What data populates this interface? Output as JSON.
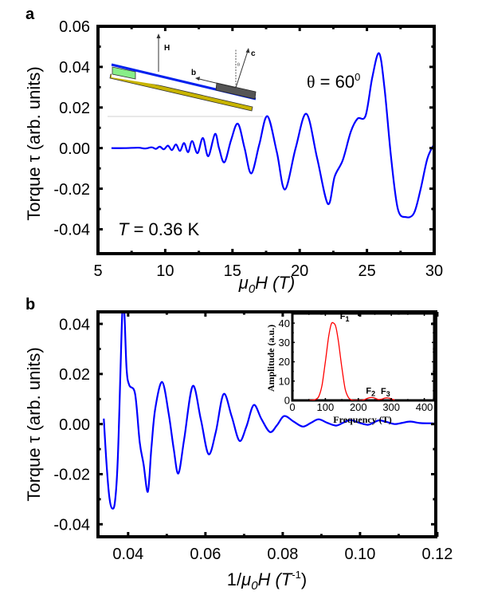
{
  "chart_data": [
    {
      "id": "a",
      "type": "line",
      "panel_label": "a",
      "xlabel_mu": "μ",
      "xlabel_sub": "0",
      "xlabel_rest": "H (T)",
      "ylabel": "Torque τ (arb. units)",
      "xlim": [
        5,
        30
      ],
      "ylim": [
        -0.052,
        0.06
      ],
      "xticks": [
        5,
        10,
        15,
        20,
        25,
        30
      ],
      "xtick_labels": [
        "5",
        "10",
        "15",
        "20",
        "25",
        "30"
      ],
      "yticks": [
        -0.04,
        -0.02,
        0.0,
        0.02,
        0.04,
        0.06
      ],
      "ytick_labels": [
        "-0.04",
        "-0.02",
        "0.00",
        "0.02",
        "0.04",
        "0.06"
      ],
      "annotations": {
        "angle_symbol": "θ",
        "angle_text": " = 60",
        "angle_sup": "0",
        "temp_symbol": "T",
        "temp_text": " = 0.36 K"
      },
      "diagram_labels": {
        "H": "H",
        "b": "b",
        "c": "c",
        "theta": "θ"
      },
      "series": [
        {
          "name": "torque",
          "color": "#0000ff",
          "x": [
            6.0,
            7.0,
            8.0,
            8.5,
            9.0,
            9.3,
            9.6,
            9.9,
            10.2,
            10.5,
            10.8,
            11.1,
            11.4,
            11.7,
            12.0,
            12.4,
            12.8,
            13.2,
            13.7,
            14.0,
            14.4,
            14.9,
            15.4,
            15.9,
            16.4,
            17.0,
            17.6,
            18.3,
            18.9,
            19.7,
            20.5,
            21.3,
            22.1,
            22.6,
            23.2,
            23.8,
            24.3,
            24.9,
            25.4,
            25.9,
            26.3,
            26.8,
            27.3,
            27.9,
            28.5,
            29.0,
            29.5,
            30.0
          ],
          "y": [
            0.0,
            0.0,
            0.0002,
            -0.0002,
            0.0004,
            -0.0004,
            0.0007,
            -0.0006,
            0.0012,
            -0.001,
            0.0018,
            -0.0014,
            0.0025,
            -0.002,
            0.0035,
            -0.0025,
            0.005,
            -0.004,
            0.007,
            0.0,
            -0.007,
            0.004,
            0.012,
            0.0,
            -0.0125,
            0.002,
            0.0157,
            -0.002,
            -0.0204,
            0.0,
            0.0169,
            -0.005,
            -0.0275,
            -0.014,
            -0.006,
            0.008,
            0.0145,
            0.016,
            0.035,
            0.0467,
            0.03,
            -0.005,
            -0.03,
            -0.034,
            -0.032,
            -0.02,
            -0.005,
            0.002
          ]
        }
      ]
    },
    {
      "id": "b",
      "type": "line",
      "panel_label": "b",
      "xlabel_pre": "1/",
      "xlabel_mu": "μ",
      "xlabel_sub": "0",
      "xlabel_rest": "H (T",
      "xlabel_sup": "-1",
      "xlabel_close": ")",
      "ylabel": "Torque τ (arb. units)",
      "xlim": [
        0.0322,
        0.1196
      ],
      "ylim": [
        -0.045,
        0.0448
      ],
      "xticks": [
        0.04,
        0.06,
        0.08,
        0.1,
        0.12
      ],
      "xtick_labels": [
        "0.04",
        "0.06",
        "0.08",
        "0.10",
        "0.12"
      ],
      "yticks": [
        -0.04,
        -0.02,
        0.0,
        0.02,
        0.04
      ],
      "ytick_labels": [
        "-0.04",
        "-0.02",
        "0.00",
        "0.02",
        "0.04"
      ],
      "series": [
        {
          "name": "torque",
          "color": "#0000ff",
          "x": [
            0.0337,
            0.0345,
            0.0352,
            0.0359,
            0.0366,
            0.0373,
            0.038,
            0.0385,
            0.039,
            0.0396,
            0.0403,
            0.0418,
            0.043,
            0.044,
            0.0451,
            0.046,
            0.047,
            0.0488,
            0.0505,
            0.0518,
            0.053,
            0.0545,
            0.0567,
            0.0588,
            0.0608,
            0.0627,
            0.0647,
            0.0668,
            0.0688,
            0.0706,
            0.0725,
            0.0745,
            0.0767,
            0.0785,
            0.0804,
            0.0828,
            0.0852,
            0.0873,
            0.0893,
            0.0915,
            0.0938,
            0.0957,
            0.0975,
            0.0998,
            0.102,
            0.1035,
            0.105,
            0.107,
            0.109,
            0.111,
            0.113,
            0.1155,
            0.118,
            0.1196
          ],
          "y": [
            0.0022,
            -0.018,
            -0.03,
            -0.0337,
            -0.031,
            -0.015,
            0.02,
            0.045,
            0.045,
            0.022,
            0.0155,
            0.012,
            -0.0073,
            -0.016,
            -0.027,
            -0.01,
            0.006,
            0.0168,
            0.004,
            -0.01,
            -0.0197,
            -0.006,
            0.0152,
            0.002,
            -0.012,
            -0.003,
            0.012,
            0.003,
            -0.0067,
            -0.001,
            0.0076,
            0.002,
            -0.0032,
            -0.0005,
            0.0032,
            0.001,
            -0.001,
            0.0005,
            0.0019,
            0.0005,
            -0.0006,
            0.0006,
            0.0016,
            0.0005,
            -0.0003,
            0.0006,
            0.0015,
            0.0008,
            0.0,
            0.0005,
            0.001,
            0.0004,
            0.0003,
            0.0002
          ]
        }
      ]
    },
    {
      "id": "inset",
      "type": "line",
      "xlabel": "Frequency (T)",
      "ylabel": "Amplitude (a.u.)",
      "xlim": [
        0,
        430
      ],
      "ylim": [
        0,
        45
      ],
      "xticks": [
        0,
        100,
        200,
        300,
        400
      ],
      "xtick_labels": [
        "0",
        "100",
        "200",
        "300",
        "400"
      ],
      "yticks": [
        0,
        10,
        20,
        30,
        40
      ],
      "ytick_labels": [
        "0",
        "10",
        "20",
        "30",
        "40"
      ],
      "peak_labels": [
        {
          "name": "F",
          "sub": "1",
          "x": 125,
          "y": 40
        },
        {
          "name": "F",
          "sub": "2",
          "x": 240,
          "y": 1.5
        },
        {
          "name": "F",
          "sub": "3",
          "x": 285,
          "y": 1.3
        }
      ],
      "series": [
        {
          "name": "FFT amplitude",
          "color": "#ff0000",
          "x": [
            50,
            60,
            70,
            80,
            90,
            100,
            110,
            118,
            125,
            132,
            140,
            150,
            160,
            170,
            180,
            190,
            200,
            210,
            220,
            230,
            240,
            250,
            260,
            270,
            280,
            290,
            300,
            310
          ],
          "y": [
            0,
            0.1,
            0.5,
            2,
            8,
            20,
            33,
            39.5,
            40,
            38,
            30,
            17,
            6,
            1.5,
            0.2,
            0,
            0,
            0,
            0.5,
            1.2,
            1.5,
            1.2,
            0.5,
            0.6,
            1.2,
            1.3,
            0.8,
            0.2
          ]
        }
      ]
    }
  ]
}
